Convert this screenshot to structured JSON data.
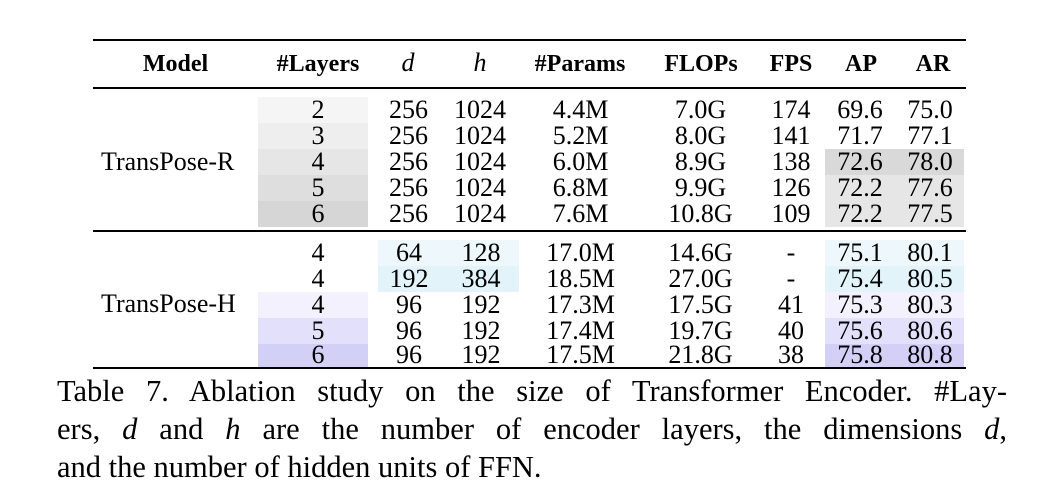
{
  "table": {
    "headers": {
      "model": "Model",
      "layers": "#Layers",
      "d": "d",
      "h": "h",
      "params": "#Params",
      "flops": "FLOPs",
      "fps": "FPS",
      "ap": "AP",
      "ar": "AR"
    },
    "groups": [
      {
        "model": "TransPose-R",
        "rows": [
          {
            "layers": "2",
            "d": "256",
            "h": "1024",
            "params": "4.4M",
            "flops": "7.0G",
            "fps": "174",
            "ap": "69.6",
            "ar": "75.0"
          },
          {
            "layers": "3",
            "d": "256",
            "h": "1024",
            "params": "5.2M",
            "flops": "8.0G",
            "fps": "141",
            "ap": "71.7",
            "ar": "77.1"
          },
          {
            "layers": "4",
            "d": "256",
            "h": "1024",
            "params": "6.0M",
            "flops": "8.9G",
            "fps": "138",
            "ap": "72.6",
            "ar": "78.0"
          },
          {
            "layers": "5",
            "d": "256",
            "h": "1024",
            "params": "6.8M",
            "flops": "9.9G",
            "fps": "126",
            "ap": "72.2",
            "ar": "77.6"
          },
          {
            "layers": "6",
            "d": "256",
            "h": "1024",
            "params": "7.6M",
            "flops": "10.8G",
            "fps": "109",
            "ap": "72.2",
            "ar": "77.5"
          }
        ]
      },
      {
        "model": "TransPose-H",
        "rows": [
          {
            "layers": "4",
            "d": "64",
            "h": "128",
            "params": "17.0M",
            "flops": "14.6G",
            "fps": "-",
            "ap": "75.1",
            "ar": "80.1"
          },
          {
            "layers": "4",
            "d": "192",
            "h": "384",
            "params": "18.5M",
            "flops": "27.0G",
            "fps": "-",
            "ap": "75.4",
            "ar": "80.5"
          },
          {
            "layers": "4",
            "d": "96",
            "h": "192",
            "params": "17.3M",
            "flops": "17.5G",
            "fps": "41",
            "ap": "75.3",
            "ar": "80.3"
          },
          {
            "layers": "5",
            "d": "96",
            "h": "192",
            "params": "17.4M",
            "flops": "19.7G",
            "fps": "40",
            "ap": "75.6",
            "ar": "80.6"
          },
          {
            "layers": "6",
            "d": "96",
            "h": "192",
            "params": "17.5M",
            "flops": "21.8G",
            "fps": "38",
            "ap": "75.8",
            "ar": "80.8"
          }
        ]
      }
    ]
  },
  "caption": {
    "line1_a": "Table 7. Ablation study on the size of Transformer Encoder. #Lay-",
    "line2_a": "ers, ",
    "line2_d": "d",
    "line2_b": " and ",
    "line2_h": "h",
    "line2_c": " are the number of encoder layers, the dimensions ",
    "line2_d2": "d",
    "line2_e": ",",
    "line3": "and the number of hidden units of FFN."
  },
  "colors": {
    "gray_1": "#f5f5f5",
    "gray_2": "#eeeeee",
    "gray_3": "#e6e6e6",
    "gray_4": "#dedede",
    "gray_5": "#d6d6d6",
    "cyan_1": "#eef8fc",
    "cyan_2": "#e2f3fa",
    "purple_1": "#f2f1fd",
    "purple_2": "#e2e0fb",
    "purple_3": "#d3d0f8"
  }
}
